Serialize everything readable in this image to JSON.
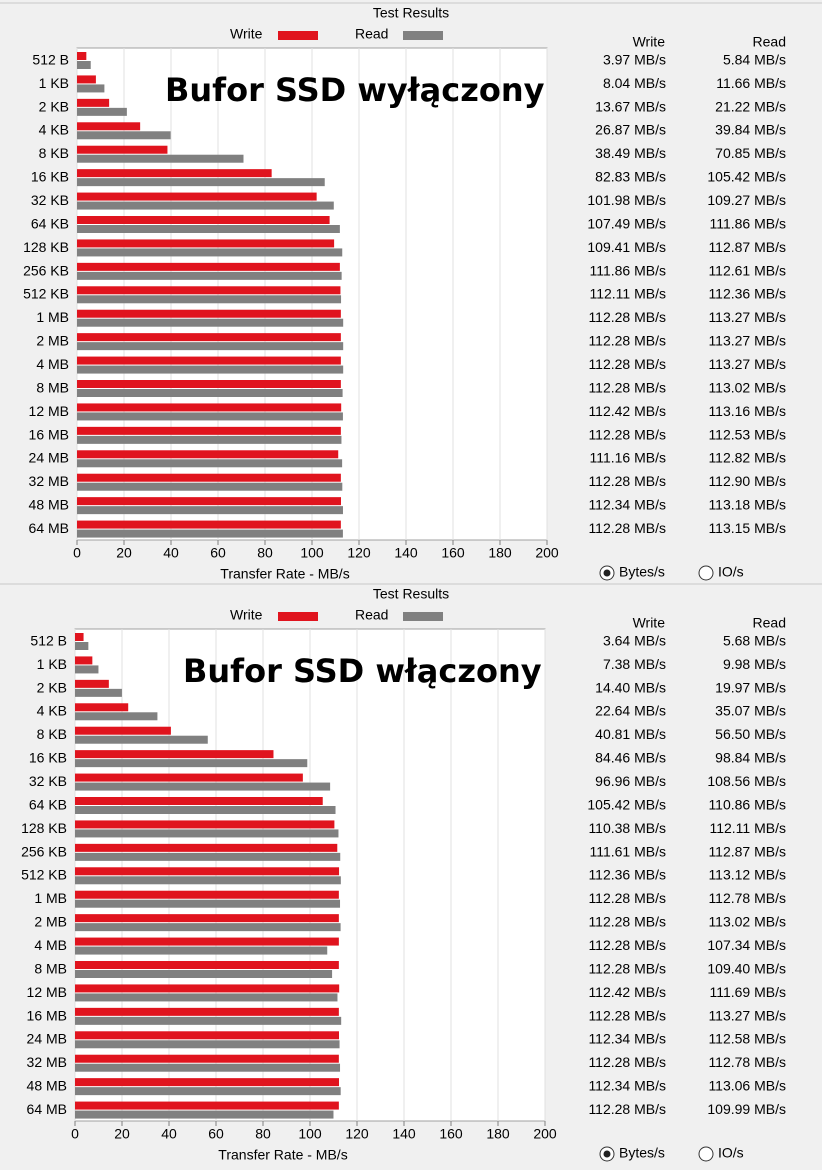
{
  "chart_data": [
    {
      "type": "bar",
      "orientation": "horizontal",
      "title": "Test Results",
      "annotation": "Bufor SSD wyłączony",
      "xlabel": "Transfer Rate - MB/s",
      "categories": [
        "512 B",
        "1 KB",
        "2 KB",
        "4 KB",
        "8 KB",
        "16 KB",
        "32 KB",
        "64 KB",
        "128 KB",
        "256 KB",
        "512 KB",
        "1 MB",
        "2 MB",
        "4 MB",
        "8 MB",
        "12 MB",
        "16 MB",
        "24 MB",
        "32 MB",
        "48 MB",
        "64 MB"
      ],
      "series": [
        {
          "name": "Write",
          "color": "#e0141e",
          "values": [
            3.97,
            8.04,
            13.67,
            26.87,
            38.49,
            82.83,
            101.98,
            107.49,
            109.41,
            111.86,
            112.11,
            112.28,
            112.28,
            112.28,
            112.28,
            112.42,
            112.28,
            111.16,
            112.28,
            112.34,
            112.28
          ],
          "value_labels": [
            "3.97 MB/s",
            "8.04 MB/s",
            "13.67 MB/s",
            "26.87 MB/s",
            "38.49 MB/s",
            "82.83 MB/s",
            "101.98 MB/s",
            "107.49 MB/s",
            "109.41 MB/s",
            "111.86 MB/s",
            "112.11 MB/s",
            "112.28 MB/s",
            "112.28 MB/s",
            "112.28 MB/s",
            "112.28 MB/s",
            "112.42 MB/s",
            "112.28 MB/s",
            "111.16 MB/s",
            "112.28 MB/s",
            "112.34 MB/s",
            "112.28 MB/s"
          ]
        },
        {
          "name": "Read",
          "color": "#808080",
          "values": [
            5.84,
            11.66,
            21.22,
            39.84,
            70.85,
            105.42,
            109.27,
            111.86,
            112.87,
            112.61,
            112.36,
            113.27,
            113.27,
            113.27,
            113.02,
            113.16,
            112.53,
            112.82,
            112.9,
            113.18,
            113.15
          ],
          "value_labels": [
            "5.84 MB/s",
            "11.66 MB/s",
            "21.22 MB/s",
            "39.84 MB/s",
            "70.85 MB/s",
            "105.42 MB/s",
            "109.27 MB/s",
            "111.86 MB/s",
            "112.87 MB/s",
            "112.61 MB/s",
            "112.36 MB/s",
            "113.27 MB/s",
            "113.27 MB/s",
            "113.27 MB/s",
            "113.02 MB/s",
            "113.16 MB/s",
            "112.53 MB/s",
            "112.82 MB/s",
            "112.90 MB/s",
            "113.18 MB/s",
            "113.15 MB/s"
          ]
        }
      ],
      "xlim": [
        0,
        200
      ],
      "xticks": [
        0,
        20,
        40,
        60,
        80,
        100,
        120,
        140,
        160,
        180,
        200
      ],
      "grid": true,
      "options": [
        "Bytes/s",
        "IO/s"
      ]
    },
    {
      "type": "bar",
      "orientation": "horizontal",
      "title": "Test Results",
      "annotation": "Bufor SSD włączony",
      "xlabel": "Transfer Rate - MB/s",
      "categories": [
        "512 B",
        "1 KB",
        "2 KB",
        "4 KB",
        "8 KB",
        "16 KB",
        "32 KB",
        "64 KB",
        "128 KB",
        "256 KB",
        "512 KB",
        "1 MB",
        "2 MB",
        "4 MB",
        "8 MB",
        "12 MB",
        "16 MB",
        "24 MB",
        "32 MB",
        "48 MB",
        "64 MB"
      ],
      "series": [
        {
          "name": "Write",
          "color": "#e0141e",
          "values": [
            3.64,
            7.38,
            14.4,
            22.64,
            40.81,
            84.46,
            96.96,
            105.42,
            110.38,
            111.61,
            112.36,
            112.28,
            112.28,
            112.28,
            112.28,
            112.42,
            112.28,
            112.34,
            112.28,
            112.34,
            112.28
          ],
          "value_labels": [
            "3.64 MB/s",
            "7.38 MB/s",
            "14.40 MB/s",
            "22.64 MB/s",
            "40.81 MB/s",
            "84.46 MB/s",
            "96.96 MB/s",
            "105.42 MB/s",
            "110.38 MB/s",
            "111.61 MB/s",
            "112.36 MB/s",
            "112.28 MB/s",
            "112.28 MB/s",
            "112.28 MB/s",
            "112.28 MB/s",
            "112.42 MB/s",
            "112.28 MB/s",
            "112.34 MB/s",
            "112.28 MB/s",
            "112.34 MB/s",
            "112.28 MB/s"
          ]
        },
        {
          "name": "Read",
          "color": "#808080",
          "values": [
            5.68,
            9.98,
            19.97,
            35.07,
            56.5,
            98.84,
            108.56,
            110.86,
            112.11,
            112.87,
            113.12,
            112.78,
            113.02,
            107.34,
            109.4,
            111.69,
            113.27,
            112.58,
            112.78,
            113.06,
            109.99
          ],
          "value_labels": [
            "5.68 MB/s",
            "9.98 MB/s",
            "19.97 MB/s",
            "35.07 MB/s",
            "56.50 MB/s",
            "98.84 MB/s",
            "108.56 MB/s",
            "110.86 MB/s",
            "112.11 MB/s",
            "112.87 MB/s",
            "113.12 MB/s",
            "112.78 MB/s",
            "113.02 MB/s",
            "107.34 MB/s",
            "109.40 MB/s",
            "111.69 MB/s",
            "113.27 MB/s",
            "112.58 MB/s",
            "112.78 MB/s",
            "113.06 MB/s",
            "109.99 MB/s"
          ]
        }
      ],
      "xlim": [
        0,
        200
      ],
      "xticks": [
        0,
        20,
        40,
        60,
        80,
        100,
        120,
        140,
        160,
        180,
        200
      ],
      "grid": true,
      "options": [
        "Bytes/s",
        "IO/s"
      ]
    }
  ]
}
